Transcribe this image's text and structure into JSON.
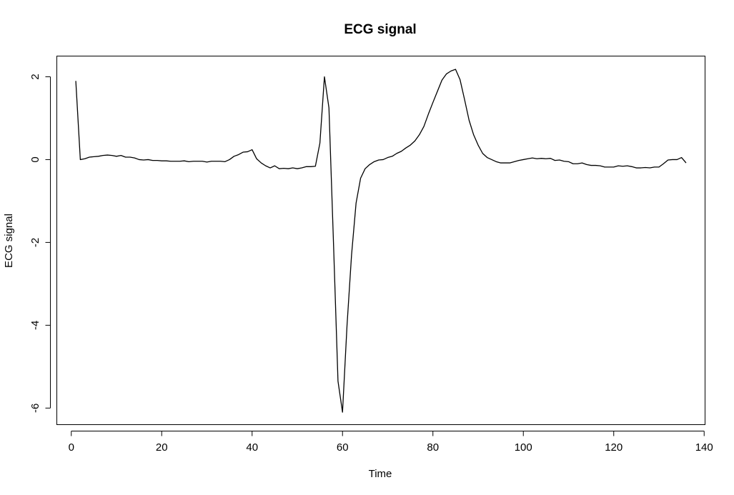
{
  "chart_data": {
    "type": "line",
    "title": "ECG signal",
    "xlabel": "Time",
    "ylabel": "ECG signal",
    "xlim": [
      -3.2,
      140.2
    ],
    "ylim": [
      -6.4,
      2.5
    ],
    "x_ticks": [
      0,
      20,
      40,
      60,
      80,
      100,
      120,
      140
    ],
    "y_ticks": [
      2,
      0,
      -2,
      -4,
      -6
    ],
    "grid": false,
    "legend": "none",
    "series": [
      {
        "color": "#000000",
        "x": [
          1,
          2,
          3,
          4,
          5,
          6,
          7,
          8,
          9,
          10,
          11,
          12,
          13,
          14,
          15,
          16,
          17,
          18,
          19,
          20,
          21,
          22,
          23,
          24,
          25,
          26,
          27,
          28,
          29,
          30,
          31,
          32,
          33,
          34,
          35,
          36,
          37,
          38,
          39,
          40,
          41,
          42,
          43,
          44,
          45,
          46,
          47,
          48,
          49,
          50,
          51,
          52,
          53,
          54,
          55,
          56,
          57,
          58,
          59,
          60,
          61,
          62,
          63,
          64,
          65,
          66,
          67,
          68,
          69,
          70,
          71,
          72,
          73,
          74,
          75,
          76,
          77,
          78,
          79,
          80,
          81,
          82,
          83,
          84,
          85,
          86,
          87,
          88,
          89,
          90,
          91,
          92,
          93,
          94,
          95,
          96,
          97,
          98,
          99,
          100,
          101,
          102,
          103,
          104,
          105,
          106,
          107,
          108,
          109,
          110,
          111,
          112,
          113,
          114,
          115,
          116,
          117,
          118,
          119,
          120,
          121,
          122,
          123,
          124,
          125,
          126,
          127,
          128,
          129,
          130,
          131,
          132,
          133,
          134,
          135,
          136
        ],
        "y": [
          1.9,
          0.0,
          0.02,
          0.06,
          0.07,
          0.08,
          0.1,
          0.11,
          0.1,
          0.08,
          0.1,
          0.06,
          0.06,
          0.04,
          0.0,
          -0.01,
          0.0,
          -0.02,
          -0.02,
          -0.03,
          -0.03,
          -0.04,
          -0.04,
          -0.04,
          -0.03,
          -0.05,
          -0.04,
          -0.04,
          -0.04,
          -0.06,
          -0.04,
          -0.04,
          -0.04,
          -0.05,
          0.0,
          0.08,
          0.12,
          0.18,
          0.19,
          0.24,
          0.02,
          -0.08,
          -0.15,
          -0.2,
          -0.15,
          -0.22,
          -0.21,
          -0.22,
          -0.2,
          -0.22,
          -0.2,
          -0.17,
          -0.17,
          -0.16,
          0.4,
          2.0,
          1.25,
          -2.0,
          -5.35,
          -6.1,
          -4.0,
          -2.3,
          -1.05,
          -0.45,
          -0.22,
          -0.12,
          -0.05,
          -0.01,
          0.0,
          0.05,
          0.08,
          0.15,
          0.2,
          0.28,
          0.35,
          0.45,
          0.6,
          0.8,
          1.1,
          1.38,
          1.65,
          1.92,
          2.07,
          2.14,
          2.18,
          1.93,
          1.45,
          0.95,
          0.6,
          0.35,
          0.15,
          0.05,
          0.0,
          -0.05,
          -0.08,
          -0.08,
          -0.08,
          -0.05,
          -0.02,
          0.0,
          0.02,
          0.04,
          0.02,
          0.03,
          0.02,
          0.03,
          -0.02,
          -0.01,
          -0.04,
          -0.05,
          -0.1,
          -0.1,
          -0.08,
          -0.12,
          -0.14,
          -0.14,
          -0.15,
          -0.18,
          -0.18,
          -0.18,
          -0.15,
          -0.16,
          -0.15,
          -0.17,
          -0.2,
          -0.2,
          -0.19,
          -0.2,
          -0.18,
          -0.18,
          -0.1,
          -0.01,
          0.0,
          0.0,
          0.05,
          -0.08
        ]
      }
    ]
  }
}
